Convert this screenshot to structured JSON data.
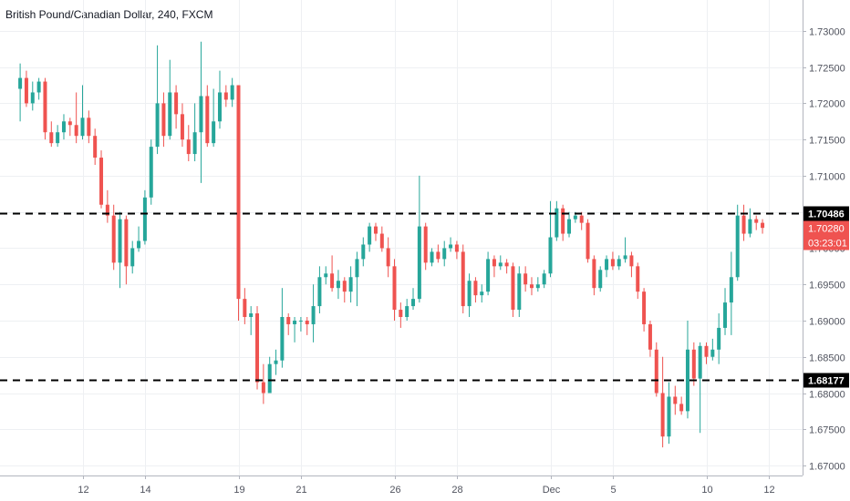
{
  "title": "British Pound/Canadian Dollar, 240, FXCM",
  "colors": {
    "up": "#26a69a",
    "down": "#ef5350",
    "grid": "#eef0f3",
    "axis_text": "#50535e",
    "level_line": "#000000",
    "price_tag": "#ef5350",
    "level_tag": "#000000"
  },
  "chart_data": {
    "type": "candlestick",
    "title": "British Pound/Canadian Dollar, 240, FXCM",
    "ylim": [
      1.6695,
      1.7325
    ],
    "y_ticks": [
      "1.73000",
      "1.72500",
      "1.72000",
      "1.71500",
      "1.71000",
      "1.70500",
      "1.70000",
      "1.69500",
      "1.69000",
      "1.68500",
      "1.68000",
      "1.67500",
      "1.67000"
    ],
    "x_ticks": [
      {
        "label": "12",
        "bar": 10
      },
      {
        "label": "14",
        "bar": 20
      },
      {
        "label": "19",
        "bar": 35
      },
      {
        "label": "21",
        "bar": 45
      },
      {
        "label": "26",
        "bar": 60
      },
      {
        "label": "28",
        "bar": 70
      },
      {
        "label": "Dec",
        "bar": 85
      },
      {
        "label": "5",
        "bar": 95
      },
      {
        "label": "10",
        "bar": 110
      },
      {
        "label": "12",
        "bar": 120
      }
    ],
    "grid": true,
    "horizontal_levels": [
      {
        "value": 1.70486,
        "label": "1.70486"
      },
      {
        "value": 1.68177,
        "label": "1.68177"
      }
    ],
    "current_price": {
      "value": 1.7028,
      "label": "1.70280",
      "countdown": "03:23:01"
    },
    "candles": [
      [
        1.722,
        1.7235,
        1.7255,
        1.7175
      ],
      [
        1.7235,
        1.72,
        1.7245,
        1.7195
      ],
      [
        1.72,
        1.7215,
        1.723,
        1.719
      ],
      [
        1.7215,
        1.723,
        1.7235,
        1.7205
      ],
      [
        1.723,
        1.716,
        1.7235,
        1.715
      ],
      [
        1.716,
        1.7145,
        1.7175,
        1.714
      ],
      [
        1.7145,
        1.716,
        1.717,
        1.714
      ],
      [
        1.716,
        1.7175,
        1.7185,
        1.715
      ],
      [
        1.7175,
        1.717,
        1.718,
        1.7155
      ],
      [
        1.717,
        1.7155,
        1.7215,
        1.7145
      ],
      [
        1.7155,
        1.718,
        1.7225,
        1.715
      ],
      [
        1.718,
        1.7155,
        1.719,
        1.7145
      ],
      [
        1.7155,
        1.7125,
        1.7165,
        1.7115
      ],
      [
        1.7125,
        1.706,
        1.7135,
        1.7055
      ],
      [
        1.706,
        1.7045,
        1.708,
        1.7035
      ],
      [
        1.7045,
        1.698,
        1.706,
        1.697
      ],
      [
        1.698,
        1.704,
        1.705,
        1.6945
      ],
      [
        1.704,
        1.6975,
        1.7045,
        1.695
      ],
      [
        1.6975,
        1.7,
        1.701,
        1.6965
      ],
      [
        1.7,
        1.701,
        1.703,
        1.6995
      ],
      [
        1.701,
        1.707,
        1.708,
        1.7005
      ],
      [
        1.707,
        1.714,
        1.715,
        1.706
      ],
      [
        1.714,
        1.72,
        1.728,
        1.713
      ],
      [
        1.72,
        1.7155,
        1.7215,
        1.714
      ],
      [
        1.7155,
        1.7215,
        1.726,
        1.715
      ],
      [
        1.7215,
        1.7185,
        1.7225,
        1.7165
      ],
      [
        1.7185,
        1.715,
        1.72,
        1.714
      ],
      [
        1.715,
        1.713,
        1.717,
        1.712
      ],
      [
        1.713,
        1.716,
        1.72,
        1.712
      ],
      [
        1.716,
        1.721,
        1.7285,
        1.709
      ],
      [
        1.721,
        1.7145,
        1.7225,
        1.714
      ],
      [
        1.7145,
        1.7175,
        1.722,
        1.714
      ],
      [
        1.7175,
        1.7215,
        1.7245,
        1.7165
      ],
      [
        1.7215,
        1.7205,
        1.7225,
        1.7195
      ],
      [
        1.7205,
        1.7225,
        1.7235,
        1.7195
      ],
      [
        1.7225,
        1.693,
        1.7225,
        1.69
      ],
      [
        1.693,
        1.6905,
        1.6945,
        1.6895
      ],
      [
        1.6905,
        1.691,
        1.692,
        1.688
      ],
      [
        1.691,
        1.6815,
        1.692,
        1.6805
      ],
      [
        1.6815,
        1.68,
        1.684,
        1.6785
      ],
      [
        1.68,
        1.684,
        1.685,
        1.6815
      ],
      [
        1.684,
        1.6845,
        1.686,
        1.6825
      ],
      [
        1.6845,
        1.6905,
        1.6945,
        1.6835
      ],
      [
        1.6905,
        1.6895,
        1.691,
        1.688
      ],
      [
        1.6895,
        1.69,
        1.6905,
        1.687
      ],
      [
        1.69,
        1.69,
        1.6905,
        1.6885
      ],
      [
        1.69,
        1.6895,
        1.6905,
        1.688
      ],
      [
        1.6895,
        1.692,
        1.695,
        1.687
      ],
      [
        1.692,
        1.696,
        1.6975,
        1.691
      ],
      [
        1.696,
        1.6965,
        1.6975,
        1.695
      ],
      [
        1.6965,
        1.6945,
        1.699,
        1.694
      ],
      [
        1.6945,
        1.6955,
        1.697,
        1.693
      ],
      [
        1.6955,
        1.694,
        1.696,
        1.6925
      ],
      [
        1.694,
        1.696,
        1.6975,
        1.6925
      ],
      [
        1.696,
        1.6985,
        1.6995,
        1.692
      ],
      [
        1.6985,
        1.7005,
        1.7015,
        1.6975
      ],
      [
        1.7005,
        1.703,
        1.7035,
        1.6995
      ],
      [
        1.703,
        1.702,
        1.7035,
        1.701
      ],
      [
        1.702,
        1.7,
        1.703,
        1.6995
      ],
      [
        1.7,
        1.6975,
        1.7015,
        1.696
      ],
      [
        1.6975,
        1.6915,
        1.6985,
        1.69
      ],
      [
        1.6915,
        1.6905,
        1.6925,
        1.689
      ],
      [
        1.6905,
        1.692,
        1.693,
        1.69
      ],
      [
        1.692,
        1.693,
        1.6945,
        1.6915
      ],
      [
        1.693,
        1.703,
        1.71,
        1.6925
      ],
      [
        1.703,
        1.698,
        1.7035,
        1.697
      ],
      [
        1.698,
        1.6995,
        1.7,
        1.6975
      ],
      [
        1.6995,
        1.6985,
        1.7005,
        1.698
      ],
      [
        1.6985,
        1.7,
        1.701,
        1.6975
      ],
      [
        1.7,
        1.7005,
        1.7015,
        1.6995
      ],
      [
        1.7005,
        1.6995,
        1.701,
        1.6985
      ],
      [
        1.6995,
        1.692,
        1.7005,
        1.691
      ],
      [
        1.692,
        1.6955,
        1.6965,
        1.6905
      ],
      [
        1.6955,
        1.6935,
        1.696,
        1.6925
      ],
      [
        1.6935,
        1.694,
        1.695,
        1.6925
      ],
      [
        1.694,
        1.6985,
        1.6995,
        1.6935
      ],
      [
        1.6985,
        1.6975,
        1.699,
        1.696
      ],
      [
        1.6975,
        1.698,
        1.699,
        1.697
      ],
      [
        1.698,
        1.6975,
        1.6985,
        1.6965
      ],
      [
        1.6975,
        1.6915,
        1.698,
        1.6905
      ],
      [
        1.6915,
        1.6965,
        1.6975,
        1.6905
      ],
      [
        1.6965,
        1.695,
        1.6975,
        1.694
      ],
      [
        1.695,
        1.6945,
        1.696,
        1.6935
      ],
      [
        1.6945,
        1.695,
        1.696,
        1.694
      ],
      [
        1.695,
        1.6965,
        1.697,
        1.6945
      ],
      [
        1.6965,
        1.7015,
        1.7065,
        1.696
      ],
      [
        1.7015,
        1.7055,
        1.7065,
        1.701
      ],
      [
        1.7055,
        1.702,
        1.706,
        1.701
      ],
      [
        1.702,
        1.704,
        1.705,
        1.7015
      ],
      [
        1.704,
        1.7045,
        1.705,
        1.7035
      ],
      [
        1.7045,
        1.7035,
        1.705,
        1.7025
      ],
      [
        1.7035,
        1.6985,
        1.704,
        1.698
      ],
      [
        1.6985,
        1.6945,
        1.699,
        1.6935
      ],
      [
        1.6945,
        1.697,
        1.6975,
        1.694
      ],
      [
        1.697,
        1.6985,
        1.699,
        1.696
      ],
      [
        1.6985,
        1.6975,
        1.6995,
        1.697
      ],
      [
        1.6975,
        1.6985,
        1.699,
        1.697
      ],
      [
        1.6985,
        1.699,
        1.7015,
        1.698
      ],
      [
        1.699,
        1.6975,
        1.6995,
        1.696
      ],
      [
        1.6975,
        1.694,
        1.698,
        1.693
      ],
      [
        1.694,
        1.6895,
        1.6945,
        1.6885
      ],
      [
        1.6895,
        1.686,
        1.69,
        1.685
      ],
      [
        1.686,
        1.68,
        1.687,
        1.6795
      ],
      [
        1.68,
        1.674,
        1.685,
        1.6725
      ],
      [
        1.674,
        1.6795,
        1.6815,
        1.673
      ],
      [
        1.6795,
        1.6785,
        1.681,
        1.677
      ],
      [
        1.6785,
        1.6775,
        1.6795,
        1.677
      ],
      [
        1.6775,
        1.686,
        1.69,
        1.6765
      ],
      [
        1.686,
        1.682,
        1.687,
        1.681
      ],
      [
        1.682,
        1.6865,
        1.687,
        1.6745
      ],
      [
        1.6865,
        1.685,
        1.687,
        1.684
      ],
      [
        1.685,
        1.686,
        1.6875,
        1.6845
      ],
      [
        1.686,
        1.689,
        1.691,
        1.684
      ],
      [
        1.689,
        1.6925,
        1.6945,
        1.688
      ],
      [
        1.6925,
        1.696,
        1.6995,
        1.688
      ],
      [
        1.696,
        1.7045,
        1.706,
        1.6955
      ],
      [
        1.7045,
        1.702,
        1.706,
        1.701
      ],
      [
        1.702,
        1.704,
        1.7055,
        1.7015
      ],
      [
        1.704,
        1.7035,
        1.7045,
        1.7025
      ],
      [
        1.7035,
        1.7028,
        1.704,
        1.702
      ]
    ]
  }
}
